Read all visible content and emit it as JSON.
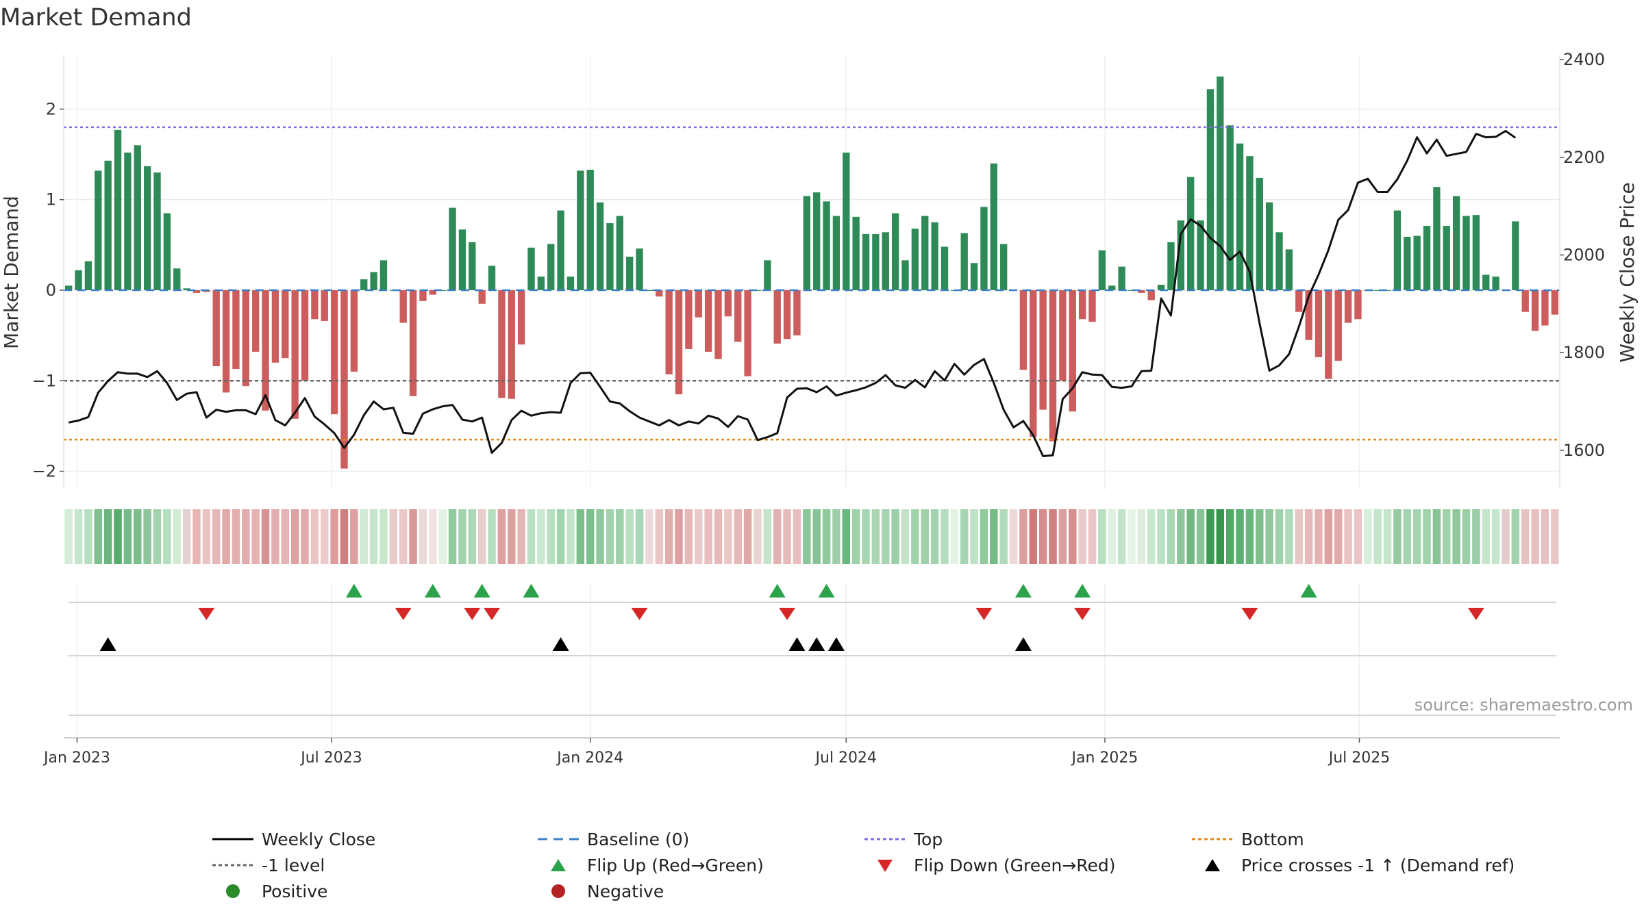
{
  "chart_data": {
    "type": "bar+line",
    "title": "Market Demand",
    "ylabel_left": "Market Demand",
    "ylabel_right": "Weekly Close Price",
    "ylim_left": [
      -2.2,
      2.6
    ],
    "ylim_right": [
      1520,
      2410
    ],
    "left_ticks": [
      2,
      1,
      0,
      -1,
      -2
    ],
    "left_tick_labels": [
      "2",
      "1",
      "0",
      "−1",
      "−2"
    ],
    "right_ticks": [
      2400,
      2200,
      2000,
      1800,
      1600
    ],
    "x_start": "2022-12-26",
    "x_step_days": 7,
    "x_ticks": [
      {
        "date": "2023-01-01",
        "label": "Jan 2023"
      },
      {
        "date": "2023-07-01",
        "label": "Jul 2023"
      },
      {
        "date": "2024-01-01",
        "label": "Jan 2024"
      },
      {
        "date": "2024-07-01",
        "label": "Jul 2024"
      },
      {
        "date": "2025-01-01",
        "label": "Jan 2025"
      },
      {
        "date": "2025-07-01",
        "label": "Jul 2025"
      }
    ],
    "reference_lines": {
      "baseline": 0,
      "top": 1.8,
      "bottom": -1.65,
      "minus_one": -1
    },
    "demand": [
      0.05,
      0.22,
      0.32,
      1.32,
      1.43,
      1.77,
      1.52,
      1.6,
      1.37,
      1.3,
      0.85,
      0.24,
      0.02,
      -0.03,
      -0.02,
      -0.84,
      -1.13,
      -0.87,
      -1.06,
      -0.68,
      -1.33,
      -0.8,
      -0.75,
      -1.42,
      -1.0,
      -0.32,
      -0.34,
      -1.37,
      -1.97,
      -0.9,
      0.12,
      0.2,
      0.33,
      0.0,
      -0.36,
      -1.17,
      -0.12,
      -0.05,
      0.0,
      0.91,
      0.67,
      0.53,
      -0.15,
      0.27,
      -1.19,
      -1.2,
      -0.6,
      0.47,
      0.15,
      0.51,
      0.88,
      0.15,
      1.32,
      1.33,
      0.97,
      0.74,
      0.82,
      0.37,
      0.46,
      0.0,
      -0.07,
      -0.93,
      -1.15,
      -0.65,
      -0.3,
      -0.68,
      -0.76,
      -0.29,
      -0.57,
      -0.95,
      0.0,
      0.33,
      -0.59,
      -0.54,
      -0.5,
      1.04,
      1.08,
      0.98,
      0.82,
      1.52,
      0.81,
      0.62,
      0.62,
      0.64,
      0.85,
      0.33,
      0.68,
      0.82,
      0.75,
      0.48,
      0.0,
      0.63,
      0.3,
      0.92,
      1.4,
      0.51,
      0.0,
      -0.88,
      -1.62,
      -1.32,
      -1.67,
      -1.0,
      -1.34,
      -0.32,
      -0.35,
      0.44,
      0.05,
      0.26,
      0.0,
      -0.03,
      -0.11,
      0.06,
      0.53,
      0.77,
      1.25,
      0.77,
      2.22,
      2.36,
      1.82,
      1.62,
      1.48,
      1.24,
      0.97,
      0.64,
      0.45,
      -0.24,
      -0.55,
      -0.74,
      -0.98,
      -0.78,
      -0.36,
      -0.32,
      0.0,
      0.0,
      0.0,
      0.88,
      0.59,
      0.6,
      0.71,
      1.14,
      0.71,
      1.04,
      0.82,
      0.83,
      0.17,
      0.15,
      0.0,
      0.76,
      -0.24,
      -0.45,
      -0.39,
      -0.27
    ],
    "price": [
      1657,
      1661,
      1668,
      1718,
      1742,
      1760,
      1757,
      1757,
      1750,
      1762,
      1738,
      1703,
      1716,
      1719,
      1667,
      1683,
      1679,
      1682,
      1682,
      1674,
      1713,
      1662,
      1651,
      1677,
      1707,
      1669,
      1653,
      1635,
      1605,
      1632,
      1672,
      1700,
      1684,
      1687,
      1636,
      1634,
      1675,
      1684,
      1690,
      1693,
      1663,
      1659,
      1667,
      1595,
      1615,
      1662,
      1681,
      1671,
      1676,
      1678,
      1677,
      1738,
      1758,
      1759,
      1730,
      1700,
      1696,
      1680,
      1667,
      1659,
      1651,
      1662,
      1651,
      1659,
      1655,
      1671,
      1665,
      1648,
      1670,
      1663,
      1621,
      1627,
      1635,
      1708,
      1726,
      1727,
      1719,
      1731,
      1712,
      1718,
      1723,
      1729,
      1738,
      1754,
      1733,
      1728,
      1744,
      1729,
      1762,
      1743,
      1777,
      1755,
      1775,
      1787,
      1738,
      1683,
      1647,
      1660,
      1631,
      1588,
      1590,
      1705,
      1727,
      1760,
      1755,
      1754,
      1730,
      1728,
      1731,
      1762,
      1763,
      1911,
      1876,
      2043,
      2073,
      2060,
      2035,
      2018,
      1990,
      2007,
      1966,
      1860,
      1763,
      1774,
      1797,
      1853,
      1916,
      1960,
      2010,
      2072,
      2092,
      2148,
      2156,
      2129,
      2129,
      2155,
      2193,
      2241,
      2208,
      2236,
      2203,
      2207,
      2211,
      2248,
      2241,
      2242,
      2254,
      2240
    ],
    "heat_colors": [
      "#d4ecd8",
      "#c5e5cb",
      "#b6dfbf",
      "#7ec08e",
      "#6cb57f",
      "#57ac6c",
      "#75bb89",
      "#7abe8b",
      "#8dc69d",
      "#a3d3ae",
      "#b6dfbf",
      "#d2ecd4",
      "#e4d2d2",
      "#e8b5b5",
      "#eac3c3",
      "#e6b7b7",
      "#e1a8a8",
      "#e3aeae",
      "#e2acac",
      "#e5b3b3",
      "#d89293",
      "#e3aeae",
      "#e5b4b4",
      "#dfa2a2",
      "#e2abab",
      "#eac4c4",
      "#edcbcb",
      "#dc9c9c",
      "#cf7f80",
      "#dd9f9f",
      "#cfe9d2",
      "#c5e6cb",
      "#c7e6cc",
      "#e8cbcb",
      "#ebc7c7",
      "#d99999",
      "#ead9d9",
      "#f2e1e1",
      "#e2f2e5",
      "#8fcb9d",
      "#a4d4ae",
      "#acd8b6",
      "#e8cdcd",
      "#b6dfbf",
      "#de9f9f",
      "#dda1a1",
      "#e5b6b6",
      "#b9e0c2",
      "#cbe8d0",
      "#b5dfbe",
      "#a1d3ad",
      "#c3e4c9",
      "#7bbf8c",
      "#7bbf8c",
      "#8ec89b",
      "#a3d3ae",
      "#9dcfa9",
      "#b7e0c0",
      "#aad7b5",
      "#ecdada",
      "#ebc6c6",
      "#e2aeae",
      "#dea1a1",
      "#e6b9b9",
      "#eacbcb",
      "#e8bebe",
      "#e7baba",
      "#ebc8c8",
      "#e6b9b9",
      "#e1a8a8",
      "#e9d3d3",
      "#c3e4c9",
      "#e3b3b3",
      "#e6bbbb",
      "#e8bebe",
      "#8bc699",
      "#86c395",
      "#8fc99d",
      "#9dcea8",
      "#6ab77c",
      "#a0d1ab",
      "#a9d6b3",
      "#aad6b4",
      "#a7d4b2",
      "#9ccfa8",
      "#c1e3c8",
      "#a1d2ac",
      "#a0d1ab",
      "#a2d3ae",
      "#b4ddbd",
      "#e2f2e5",
      "#a7d4b2",
      "#bee2c5",
      "#8fcb9d",
      "#76bc87",
      "#b0dab9",
      "#eed9d9",
      "#dc9f9f",
      "#cc7a7a",
      "#d68e8e",
      "#cf8081",
      "#dc9f9f",
      "#d68e8e",
      "#eac9c9",
      "#ebc6c6",
      "#b8e0c0",
      "#dff0e2",
      "#c3e4c9",
      "#e6f4e8",
      "#ddeedf",
      "#c9e7ce",
      "#bbe1c3",
      "#a9d6b3",
      "#8dc69a",
      "#70b880",
      "#86c395",
      "#3d9a52",
      "#36964d",
      "#52a966",
      "#5cae70",
      "#6ab77b",
      "#7ebf8d",
      "#8ec89b",
      "#9fd1aa",
      "#b0dab9",
      "#eac7c7",
      "#e6baba",
      "#e4b3b3",
      "#dea0a0",
      "#e2abab",
      "#eac3c3",
      "#eac5c5",
      "#d8eddb",
      "#c5e6cb",
      "#c4e5ca",
      "#96cba2",
      "#a6d4b1",
      "#a5d4b1",
      "#a0d2ab",
      "#87c495",
      "#a0d2ab",
      "#8fc99b",
      "#9ccfa8",
      "#9acea6",
      "#c4e5ca",
      "#c6e6cb",
      "#e4cccc",
      "#a1d2ad",
      "#e6c3c3",
      "#e8c0c0",
      "#e6c1c1",
      "#e9c7c7"
    ],
    "flip_up": [
      "2023-07-17",
      "2023-09-11",
      "2023-10-16",
      "2023-11-20",
      "2024-05-13",
      "2024-06-17",
      "2024-11-04",
      "2024-12-16",
      "2025-05-26"
    ],
    "flip_down": [
      "2023-04-03",
      "2023-08-21",
      "2023-10-09",
      "2023-10-23",
      "2024-02-05",
      "2024-05-20",
      "2024-10-07",
      "2024-12-16",
      "2025-04-14",
      "2025-09-22"
    ],
    "price_crosses": [
      "2023-01-23",
      "2023-12-11",
      "2024-05-27",
      "2024-06-10",
      "2024-06-24",
      "2024-11-04"
    ],
    "legend": [
      {
        "label": "Weekly Close",
        "kind": "line-solid",
        "color": "#000000"
      },
      {
        "label": "Baseline (0)",
        "kind": "line-dash",
        "color": "#3b7fc4"
      },
      {
        "label": "Top",
        "kind": "line-dot",
        "color": "#7b6fe0"
      },
      {
        "label": "Bottom",
        "kind": "line-dot",
        "color": "#e08a1c"
      },
      {
        "label": "-1 level",
        "kind": "line-dot",
        "color": "#666666"
      },
      {
        "label": "Flip Up (Red→Green)",
        "kind": "tri-up",
        "color": "#2ca24a"
      },
      {
        "label": "Flip Down (Green→Red)",
        "kind": "tri-down",
        "color": "#d62728"
      },
      {
        "label": "Price crosses -1 ↑ (Demand ref)",
        "kind": "tri-up",
        "color": "#000000"
      },
      {
        "label": "Positive",
        "kind": "dot",
        "color": "#2a8a2a"
      },
      {
        "label": "Negative",
        "kind": "dot",
        "color": "#b22222"
      }
    ],
    "colors": {
      "positive": "#2e8b57",
      "negative": "#cd5c5c"
    }
  },
  "source_text": "source: sharemaestro.com"
}
